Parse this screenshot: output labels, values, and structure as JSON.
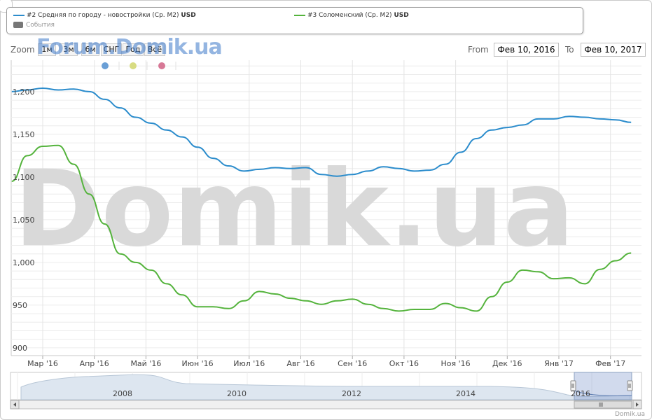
{
  "legend": {
    "series_blue": {
      "label": "#2 Средняя по городу - новостройки (Ср. М2)",
      "unit": "USD",
      "color": "#2b8ccc"
    },
    "series_green": {
      "label": "#3 Соломенский (Ср. М2)",
      "unit": "USD",
      "color": "#54b33c"
    },
    "events_label": "События"
  },
  "zoom": {
    "label": "Zoom",
    "buttons": [
      "1м",
      "3м",
      "6м",
      "СНГ",
      "Год",
      "Всё"
    ]
  },
  "range": {
    "from_label": "From",
    "from_value": "Фев 10, 2016",
    "to_label": "To",
    "to_value": "Фев 10, 2017"
  },
  "watermark_top": "Forum.Domik.ua",
  "watermark_main": "Domik.ua",
  "credit": "Domik.ua",
  "event_markers": [
    {
      "color": "#6a9fd6"
    },
    {
      "color": "#d8dc82"
    },
    {
      "color": "#d77896"
    }
  ],
  "navigator": {
    "year_labels": [
      "2008",
      "2010",
      "2012",
      "2014",
      "2016"
    ]
  },
  "chart_data": {
    "type": "line",
    "x_tick_labels": [
      "Мар '16",
      "Апр '16",
      "Май '16",
      "Июн '16",
      "Июл '16",
      "Авг '16",
      "Сен '16",
      "Окт '16",
      "Ноя '16",
      "Дек '16",
      "Янв '17",
      "Фев '17"
    ],
    "y_tick_labels": [
      "900",
      "950",
      "1,000",
      "1,050",
      "1,100",
      "1,150",
      "1,200"
    ],
    "ylim": [
      900,
      1250
    ],
    "x_axis_month_offset": [
      -0.6,
      11.4
    ],
    "grid": true,
    "legend_position": "top",
    "series": [
      {
        "name": "#2 Средняя по городу - новостройки (Ср. М2)",
        "color": "#2b8ccc",
        "x": [
          -0.6,
          -0.3,
          0,
          0.3,
          0.6,
          0.9,
          1.2,
          1.5,
          1.8,
          2.1,
          2.4,
          2.7,
          3.0,
          3.3,
          3.6,
          3.9,
          4.2,
          4.5,
          4.8,
          5.1,
          5.4,
          5.7,
          6.0,
          6.3,
          6.6,
          6.9,
          7.2,
          7.5,
          7.8,
          8.1,
          8.4,
          8.7,
          9.0,
          9.3,
          9.6,
          9.9,
          10.2,
          10.5,
          10.8,
          11.1,
          11.4
        ],
        "y": [
          1205,
          1207,
          1209,
          1207,
          1208,
          1205,
          1196,
          1186,
          1175,
          1168,
          1160,
          1152,
          1140,
          1127,
          1118,
          1112,
          1114,
          1116,
          1115,
          1116,
          1108,
          1106,
          1108,
          1112,
          1117,
          1115,
          1112,
          1113,
          1120,
          1134,
          1150,
          1160,
          1163,
          1166,
          1173,
          1173,
          1176,
          1175,
          1173,
          1172,
          1169
        ]
      },
      {
        "name": "#3 Соломенский (Ср. М2)",
        "color": "#54b33c",
        "x": [
          -0.6,
          -0.3,
          0,
          0.3,
          0.6,
          0.9,
          1.2,
          1.5,
          1.8,
          2.1,
          2.4,
          2.7,
          3.0,
          3.3,
          3.6,
          3.9,
          4.2,
          4.5,
          4.8,
          5.1,
          5.4,
          5.7,
          6.0,
          6.3,
          6.6,
          6.9,
          7.2,
          7.5,
          7.8,
          8.1,
          8.4,
          8.7,
          9.0,
          9.3,
          9.6,
          9.9,
          10.2,
          10.5,
          10.8,
          11.1,
          11.4
        ],
        "y": [
          1100,
          1130,
          1141,
          1142,
          1120,
          1085,
          1050,
          1015,
          1005,
          996,
          980,
          967,
          953,
          953,
          951,
          960,
          971,
          968,
          963,
          960,
          956,
          960,
          962,
          956,
          951,
          948,
          950,
          950,
          957,
          952,
          948,
          965,
          982,
          996,
          994,
          986,
          987,
          980,
          997,
          1007,
          1016
        ]
      }
    ]
  }
}
